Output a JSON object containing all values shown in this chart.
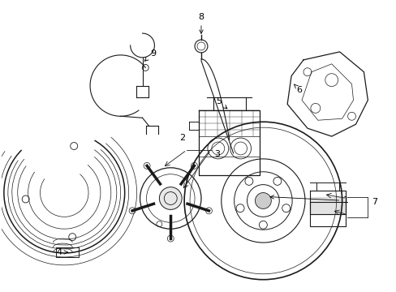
{
  "bg_color": "#ffffff",
  "line_color": "#1a1a1a",
  "figsize": [
    4.89,
    3.6
  ],
  "dpi": 100,
  "font_size": 8,
  "lw": 0.8
}
